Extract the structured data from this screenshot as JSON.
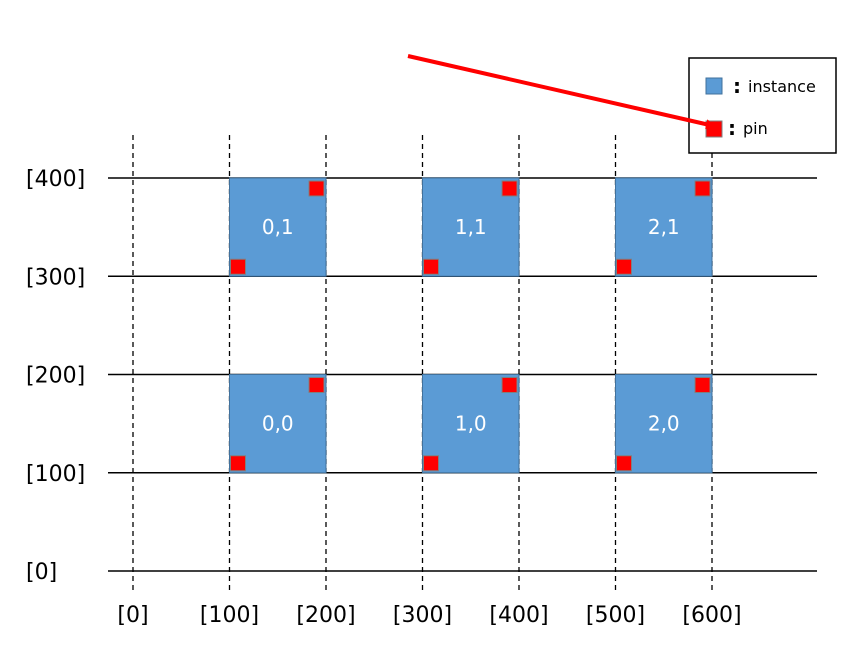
{
  "y_axis": {
    "ticks": [
      {
        "value": 0,
        "label": "[0]"
      },
      {
        "value": 100,
        "label": "[100]"
      },
      {
        "value": 200,
        "label": "[200]"
      },
      {
        "value": 300,
        "label": "[300]"
      },
      {
        "value": 400,
        "label": "[400]"
      }
    ]
  },
  "x_axis": {
    "ticks": [
      {
        "value": 0,
        "label": "[0]"
      },
      {
        "value": 100,
        "label": "[100]"
      },
      {
        "value": 200,
        "label": "[200]"
      },
      {
        "value": 300,
        "label": "[300]"
      },
      {
        "value": 400,
        "label": "[400]"
      },
      {
        "value": 500,
        "label": "[500]"
      },
      {
        "value": 600,
        "label": "[600]"
      }
    ]
  },
  "instances": [
    {
      "label": "0,1",
      "x": [
        100,
        200
      ],
      "y": [
        300,
        400
      ]
    },
    {
      "label": "1,1",
      "x": [
        300,
        400
      ],
      "y": [
        300,
        400
      ]
    },
    {
      "label": "2,1",
      "x": [
        500,
        600
      ],
      "y": [
        300,
        400
      ]
    },
    {
      "label": "0,0",
      "x": [
        100,
        200
      ],
      "y": [
        100,
        200
      ]
    },
    {
      "label": "1,0",
      "x": [
        300,
        400
      ],
      "y": [
        100,
        200
      ]
    },
    {
      "label": "2,0",
      "x": [
        500,
        600
      ],
      "y": [
        100,
        200
      ]
    }
  ],
  "legend": {
    "instance_label": "instance",
    "pin_label": "pin",
    "colon": ":"
  },
  "colors": {
    "instance": "#5b9bd5",
    "instance_border": "#41719c",
    "pin": "#ff0000",
    "pin_border": "#7f7f7f",
    "arrow": "#ff0000",
    "grid": "#000000"
  }
}
